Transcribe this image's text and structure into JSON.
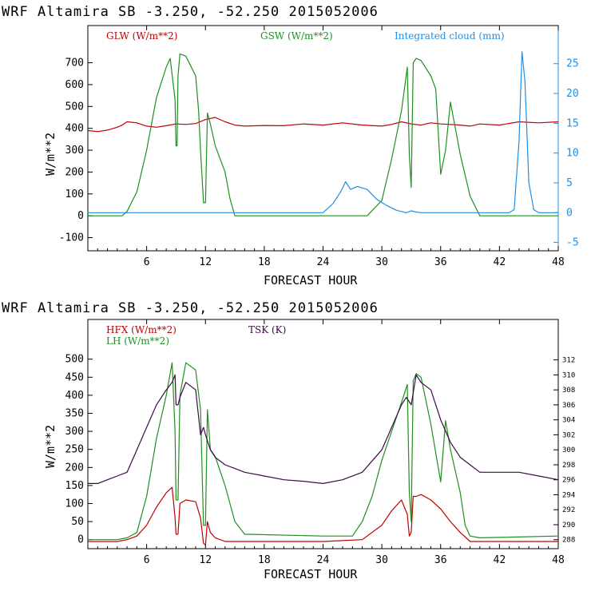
{
  "colors": {
    "red": "#c00000",
    "green": "#1f8f1f",
    "blue": "#1e8fe6",
    "purple": "#3c0a46",
    "black": "#000000"
  },
  "chart_data": [
    {
      "type": "line",
      "title": "WRF   Altamira  SB  -3.250, -52.250  2015052006",
      "xlabel": "FORECAST HOUR",
      "ylabel": "W/m**2",
      "x_ticks": [
        "6",
        "12",
        "18",
        "24",
        "30",
        "36",
        "42",
        "48"
      ],
      "y_ticks": [
        "-100",
        "0",
        "100",
        "200",
        "300",
        "400",
        "500",
        "600",
        "700"
      ],
      "y2_ticks": [
        "-5",
        "0",
        "5",
        "10",
        "15",
        "20",
        "25"
      ],
      "xlim": [
        0,
        48
      ],
      "ylim": [
        -160,
        870
      ],
      "y2lim": [
        -6.4,
        31.4
      ],
      "series": [
        {
          "name": "GLW (W/m**2)",
          "color": "red",
          "axis": "left",
          "x": [
            0,
            1,
            2,
            3,
            3.5,
            4,
            5,
            6,
            7,
            8,
            9,
            10,
            11,
            12,
            13,
            14,
            15,
            16,
            18,
            20,
            22,
            24,
            26,
            28,
            30,
            31,
            32,
            33,
            34,
            35,
            36,
            37,
            38,
            39,
            40,
            42,
            44,
            46,
            48
          ],
          "y": [
            390,
            385,
            392,
            405,
            415,
            430,
            425,
            410,
            405,
            412,
            420,
            418,
            422,
            440,
            450,
            430,
            415,
            410,
            413,
            412,
            420,
            415,
            425,
            415,
            410,
            418,
            430,
            420,
            415,
            425,
            420,
            418,
            415,
            410,
            420,
            415,
            430,
            425,
            430
          ]
        },
        {
          "name": "GSW (W/m**2)",
          "color": "green",
          "axis": "left",
          "x": [
            0,
            3.5,
            4,
            5,
            6,
            7,
            8,
            8.4,
            8.9,
            9.0,
            9.1,
            9.2,
            9.4,
            10,
            11,
            11.3,
            11.5,
            11.8,
            12,
            12.2,
            12.5,
            13,
            14,
            14.5,
            15,
            16,
            24,
            27,
            28.5,
            30,
            31,
            32,
            32.6,
            32.8,
            33,
            33.2,
            33.5,
            34,
            35,
            35.5,
            36,
            36.5,
            37,
            38,
            39,
            40,
            48
          ],
          "y": [
            0,
            0,
            20,
            110,
            300,
            540,
            680,
            720,
            530,
            320,
            320,
            640,
            740,
            730,
            640,
            480,
            300,
            60,
            60,
            470,
            420,
            320,
            200,
            80,
            0,
            0,
            0,
            0,
            0,
            70,
            260,
            480,
            680,
            280,
            130,
            700,
            720,
            710,
            640,
            580,
            190,
            300,
            520,
            280,
            90,
            0,
            0
          ]
        },
        {
          "name": "Integrated cloud (mm)",
          "color": "blue",
          "axis": "right",
          "x": [
            0,
            24,
            25,
            25.8,
            26.3,
            26.8,
            27.5,
            28.5,
            29.5,
            30.5,
            31.5,
            32.5,
            33.0,
            33.5,
            34,
            36,
            42,
            43,
            43.5,
            44,
            44.3,
            44.6,
            45,
            45.5,
            46,
            48
          ],
          "y": [
            0,
            0,
            1.5,
            3.5,
            5.2,
            3.9,
            4.4,
            3.9,
            2.2,
            1.2,
            0.4,
            0,
            0.3,
            0.1,
            0,
            0,
            0,
            0,
            0.5,
            12,
            27,
            22,
            5,
            0.5,
            0,
            0
          ]
        }
      ]
    },
    {
      "type": "line",
      "title": "WRF   Altamira  SB  -3.250, -52.250  2015052006",
      "xlabel": "FORECAST HOUR",
      "ylabel": "W/m**2",
      "x_ticks": [
        "6",
        "12",
        "18",
        "24",
        "30",
        "36",
        "42",
        "48"
      ],
      "y_ticks": [
        "0",
        "50",
        "100",
        "150",
        "200",
        "250",
        "300",
        "350",
        "400",
        "450",
        "500"
      ],
      "y2_ticks": [
        "288",
        "290",
        "292",
        "294",
        "296",
        "298",
        "300",
        "302",
        "304",
        "306",
        "308",
        "310",
        "312"
      ],
      "xlim": [
        0,
        48
      ],
      "ylim": [
        -25,
        610
      ],
      "y2lim": [
        286.8,
        317.4
      ],
      "series": [
        {
          "name": "HFX (W/m**2)",
          "color": "red",
          "axis": "left",
          "x": [
            0,
            3,
            4,
            5,
            6,
            7,
            8,
            8.6,
            8.9,
            9.0,
            9.2,
            9.4,
            10,
            11,
            11.5,
            11.8,
            12,
            12.2,
            12.5,
            13,
            14,
            16,
            24,
            28,
            30,
            31,
            32,
            32.6,
            32.8,
            33,
            33.2,
            33.5,
            34,
            35,
            36,
            37,
            38,
            39,
            40,
            48
          ],
          "y": [
            -5,
            -5,
            0,
            10,
            40,
            90,
            130,
            145,
            60,
            15,
            15,
            100,
            110,
            105,
            60,
            -10,
            -15,
            50,
            20,
            5,
            -5,
            -5,
            -5,
            0,
            40,
            80,
            110,
            70,
            10,
            20,
            120,
            120,
            125,
            110,
            85,
            50,
            20,
            -5,
            -5,
            -5
          ]
        },
        {
          "name": "LH (W/m**2)",
          "color": "green",
          "axis": "left",
          "x": [
            0,
            3,
            4,
            5,
            6,
            7,
            8,
            8.6,
            8.9,
            9.0,
            9.2,
            9.4,
            10,
            11,
            11.5,
            11.8,
            12,
            12.2,
            12.5,
            13,
            14,
            15,
            16,
            24,
            27,
            28,
            29,
            30,
            31,
            32,
            32.6,
            32.8,
            33,
            33.2,
            33.5,
            34,
            35,
            36,
            36.5,
            37,
            38,
            38.5,
            39,
            40,
            48
          ],
          "y": [
            0,
            0,
            5,
            20,
            120,
            280,
            400,
            490,
            300,
            110,
            110,
            400,
            490,
            470,
            360,
            40,
            40,
            360,
            250,
            230,
            150,
            50,
            15,
            10,
            10,
            50,
            120,
            220,
            300,
            380,
            430,
            130,
            50,
            440,
            460,
            450,
            320,
            160,
            330,
            250,
            130,
            40,
            10,
            5,
            10
          ]
        },
        {
          "name": "TSK (K)",
          "color": "purple",
          "axis": "right",
          "x": [
            0,
            1,
            2,
            3,
            4,
            5,
            6,
            7,
            8,
            8.6,
            8.9,
            9.0,
            9.2,
            9.4,
            10,
            11,
            11.5,
            11.8,
            12,
            12.5,
            13,
            14,
            15,
            16,
            18,
            20,
            22,
            24,
            26,
            28,
            30,
            31,
            32,
            32.5,
            33,
            33.5,
            34,
            35,
            36,
            37,
            38,
            39,
            40,
            42,
            44,
            46,
            48
          ],
          "y": [
            295.5,
            295.5,
            296,
            296.5,
            297,
            300,
            303,
            306,
            308,
            309,
            310,
            306,
            306,
            307,
            309,
            308,
            302,
            303,
            302,
            300,
            299,
            298,
            297.5,
            297,
            296.5,
            296,
            295.8,
            295.5,
            296,
            297,
            300,
            303,
            306,
            307,
            306,
            310,
            309,
            308,
            304,
            301,
            299,
            298,
            297,
            297,
            297,
            296.5,
            296
          ]
        }
      ],
      "legend_labels": {
        "hfx": "HFX (W/m**2)",
        "lh": "LH  (W/m**2)",
        "tsk": "TSK (K)"
      }
    }
  ],
  "top": {
    "legend_glw": "GLW (W/m**2)",
    "legend_gsw": "GSW (W/m**2)",
    "legend_cloud": "Integrated cloud (mm)"
  }
}
